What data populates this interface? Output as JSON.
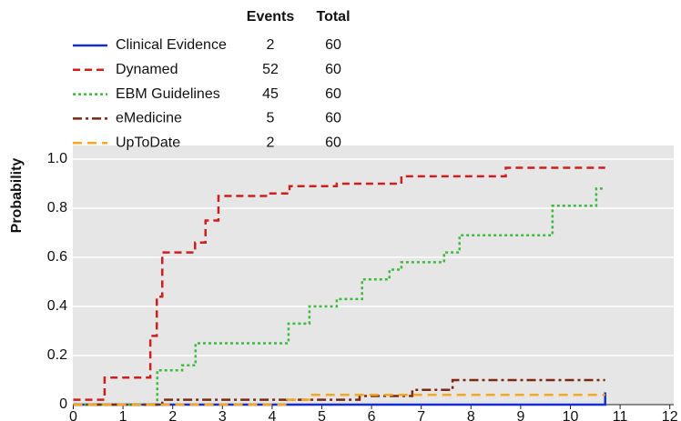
{
  "chart_data": {
    "type": "step",
    "y_label": "Probability",
    "events_header": "Events",
    "total_header": "Total",
    "series": [
      {
        "name": "Clinical Evidence",
        "color": "#1530c8",
        "dash": "solid",
        "events": 2,
        "total": 60,
        "x": [
          0,
          10.7
        ],
        "values": [
          0,
          0.05
        ]
      },
      {
        "name": "Dynamed",
        "color": "#cc1f1f",
        "dash": "dashed",
        "events": 52,
        "total": 60,
        "x": [
          0,
          0.63,
          1.55,
          1.68,
          1.79,
          2.45,
          2.66,
          2.92,
          3.93,
          4.35,
          5.3,
          6.6,
          8.7,
          10.7
        ],
        "values": [
          0.02,
          0.11,
          0.28,
          0.44,
          0.62,
          0.66,
          0.75,
          0.85,
          0.86,
          0.89,
          0.9,
          0.93,
          0.965,
          0.965
        ]
      },
      {
        "name": "EBM Guidelines",
        "color": "#3dbb3d",
        "dash": "dotted",
        "events": 45,
        "total": 60,
        "x": [
          0,
          1.69,
          2.19,
          2.46,
          4.33,
          4.75,
          5.3,
          5.81,
          6.36,
          6.6,
          7.46,
          7.77,
          9.64,
          10.52,
          10.7
        ],
        "values": [
          0,
          0.14,
          0.16,
          0.25,
          0.33,
          0.4,
          0.43,
          0.51,
          0.55,
          0.58,
          0.62,
          0.69,
          0.81,
          0.88,
          0.88
        ]
      },
      {
        "name": "eMedicine",
        "color": "#7a2a10",
        "dash": "dashdot",
        "events": 5,
        "total": 60,
        "x": [
          0,
          1.79,
          5.76,
          6.82,
          7.63,
          10.7
        ],
        "values": [
          0,
          0.02,
          0.035,
          0.06,
          0.1,
          0.1
        ]
      },
      {
        "name": "UpToDate",
        "color": "#f5a623",
        "dash": "longdash",
        "events": 2,
        "total": 60,
        "x": [
          0,
          4.3,
          4.75,
          10.7
        ],
        "values": [
          0,
          0.02,
          0.04,
          0.04
        ]
      }
    ],
    "xlim": [
      0,
      12
    ],
    "xticks": [
      0,
      1,
      2,
      3,
      4,
      5,
      6,
      7,
      8,
      9,
      10,
      11,
      12
    ],
    "ylim": [
      0,
      1
    ],
    "yticks": [
      0,
      0.2,
      0.4,
      0.6,
      0.8,
      {
        "value": 1,
        "label": "1.0"
      }
    ],
    "grid": true
  }
}
